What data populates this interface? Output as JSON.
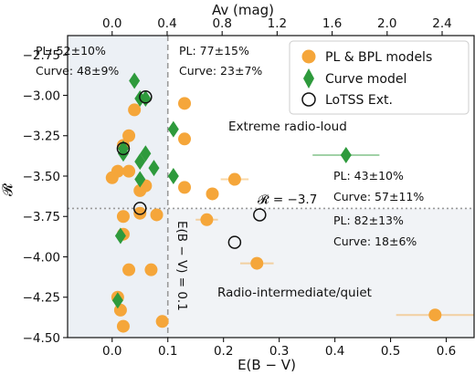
{
  "chart_data": {
    "type": "scatter",
    "xlabel": "E(B − V)",
    "ylabel": "𝓡",
    "top_axis_label": "Av (mag)",
    "xlim": [
      -0.08,
      0.65
    ],
    "ylim": [
      -4.5,
      -2.63
    ],
    "x_ticks": [
      0.0,
      0.1,
      0.2,
      0.3,
      0.4,
      0.5,
      0.6
    ],
    "x_tick_labels": [
      "0.0",
      "0.1",
      "0.2",
      "0.3",
      "0.4",
      "0.5",
      "0.6"
    ],
    "y_ticks": [
      -4.5,
      -4.25,
      -4.0,
      -3.75,
      -3.5,
      -3.25,
      -3.0,
      -2.75
    ],
    "y_tick_labels": [
      "−4.50",
      "−4.25",
      "−4.00",
      "−3.75",
      "−3.50",
      "−3.25",
      "−3.00",
      "−2.75"
    ],
    "top_ticks_av": [
      0.0,
      0.4,
      0.8,
      1.2,
      1.6,
      2.0,
      2.4
    ],
    "top_tick_labels": [
      "0.0",
      "0.4",
      "0.8",
      "1.2",
      "1.6",
      "2.0",
      "2.4"
    ],
    "av_per_ebv": 4.05,
    "threshold_y": -3.7,
    "threshold_label": "𝓡 = −3.7",
    "threshold_x": 0.1,
    "threshold_x_label": "E(B − V) = 0.1",
    "grid": false,
    "legend_position": "top-right",
    "legend": [
      {
        "label": "PL & BPL models",
        "marker": "circle",
        "color": "#f5a63a"
      },
      {
        "label": "Curve model",
        "marker": "diamond",
        "color": "#2e9a3c"
      },
      {
        "label": "LoTSS Ext.",
        "marker": "open-circle",
        "color": "#111111"
      }
    ],
    "series": [
      {
        "name": "PL & BPL models",
        "marker": "circle",
        "color": "#f5a63a",
        "points": [
          {
            "x": 0.04,
            "y": -3.09
          },
          {
            "x": 0.13,
            "y": -3.05
          },
          {
            "x": 0.13,
            "y": -3.27
          },
          {
            "x": 0.03,
            "y": -3.25
          },
          {
            "x": 0.02,
            "y": -3.31
          },
          {
            "x": 0.01,
            "y": -3.47
          },
          {
            "x": 0.03,
            "y": -3.47
          },
          {
            "x": 0.0,
            "y": -3.51
          },
          {
            "x": 0.06,
            "y": -3.56
          },
          {
            "x": 0.13,
            "y": -3.57
          },
          {
            "x": 0.05,
            "y": -3.59
          },
          {
            "x": 0.18,
            "y": -3.61
          },
          {
            "x": 0.22,
            "y": -3.52,
            "xerr": 0.025
          },
          {
            "x": 0.05,
            "y": -3.73
          },
          {
            "x": 0.08,
            "y": -3.74
          },
          {
            "x": 0.02,
            "y": -3.75
          },
          {
            "x": 0.17,
            "y": -3.77,
            "xerr": 0.02
          },
          {
            "x": 0.02,
            "y": -3.86
          },
          {
            "x": 0.03,
            "y": -4.08
          },
          {
            "x": 0.07,
            "y": -4.08
          },
          {
            "x": 0.26,
            "y": -4.04,
            "xerr": 0.03
          },
          {
            "x": 0.01,
            "y": -4.25
          },
          {
            "x": 0.015,
            "y": -4.33
          },
          {
            "x": 0.02,
            "y": -4.43
          },
          {
            "x": 0.09,
            "y": -4.4
          },
          {
            "x": 0.58,
            "y": -4.36,
            "xerr": 0.07
          }
        ]
      },
      {
        "name": "Curve model",
        "marker": "diamond",
        "color": "#2e9a3c",
        "points": [
          {
            "x": 0.04,
            "y": -2.91
          },
          {
            "x": 0.05,
            "y": -3.02
          },
          {
            "x": 0.06,
            "y": -3.02
          },
          {
            "x": 0.11,
            "y": -3.21
          },
          {
            "x": 0.02,
            "y": -3.33
          },
          {
            "x": 0.02,
            "y": -3.36
          },
          {
            "x": 0.06,
            "y": -3.36
          },
          {
            "x": 0.05,
            "y": -3.41
          },
          {
            "x": 0.075,
            "y": -3.45
          },
          {
            "x": 0.05,
            "y": -3.52
          },
          {
            "x": 0.11,
            "y": -3.5
          },
          {
            "x": 0.015,
            "y": -3.87
          },
          {
            "x": 0.01,
            "y": -4.27
          },
          {
            "x": 0.42,
            "y": -3.37,
            "xerr": 0.06
          }
        ]
      },
      {
        "name": "LoTSS Ext.",
        "marker": "open-circle",
        "color": "#111111",
        "points": [
          {
            "x": 0.06,
            "y": -3.01
          },
          {
            "x": 0.02,
            "y": -3.33
          },
          {
            "x": 0.05,
            "y": -3.7
          },
          {
            "x": 0.265,
            "y": -3.74
          },
          {
            "x": 0.22,
            "y": -3.91
          }
        ]
      }
    ],
    "annotations": [
      {
        "id": "tl_pl",
        "text": "PL: 52±10%"
      },
      {
        "id": "tl_curve",
        "text": "Curve: 48±9%"
      },
      {
        "id": "tr_pl",
        "text": "PL: 77±15%"
      },
      {
        "id": "tr_curve",
        "text": "Curve: 23±7%"
      },
      {
        "id": "mr_pl",
        "text": "PL: 43±10%"
      },
      {
        "id": "mr_curve",
        "text": "Curve: 57±11%"
      },
      {
        "id": "br_pl",
        "text": "PL: 82±13%"
      },
      {
        "id": "br_curve",
        "text": "Curve: 18±6%"
      }
    ],
    "regions": [
      {
        "id": "top",
        "text": "Extreme radio-loud"
      },
      {
        "id": "bottom",
        "text": "Radio-intermediate/quiet"
      }
    ]
  }
}
